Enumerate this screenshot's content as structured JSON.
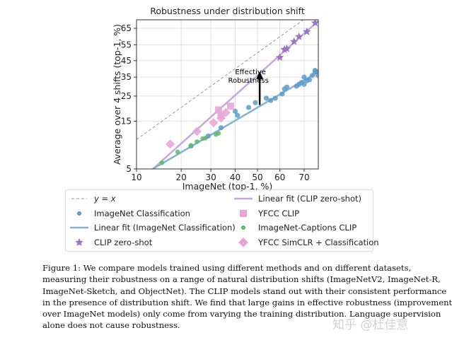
{
  "chart_data": {
    "type": "scatter",
    "title": "Robustness under distribution shift",
    "xlabel": "ImageNet (top-1, %)",
    "ylabel": "Average over 4 shifts (top-1, %)",
    "xscale": "logit",
    "yscale": "logit",
    "xlim": [
      10,
      75
    ],
    "ylim": [
      5,
      70
    ],
    "xticks": [
      10,
      20,
      30,
      40,
      50,
      60,
      70
    ],
    "yticks": [
      5,
      15,
      25,
      35,
      45,
      55,
      65
    ],
    "grid": true,
    "legend_placement": "below",
    "annotation": {
      "text_line1": "Effective",
      "text_line2": "Robustness",
      "arrow_x": 51,
      "arrow_from": 21,
      "arrow_to": 38
    },
    "series": [
      {
        "name": "y = x",
        "kind": "line",
        "color": "#999999",
        "dashed": true,
        "points": [
          [
            10,
            10
          ],
          [
            75,
            75
          ]
        ]
      },
      {
        "name": "Linear fit (CLIP zero-shot)",
        "kind": "line",
        "color": "#c5a8dd",
        "points": [
          [
            13,
            5
          ],
          [
            75,
            69
          ]
        ]
      },
      {
        "name": "ImageNet Classification",
        "kind": "circle",
        "color": "#5b9bc8",
        "points": [
          [
            23,
            8.6
          ],
          [
            29,
            10.8
          ],
          [
            34,
            13
          ],
          [
            40,
            18.5
          ],
          [
            41,
            17
          ],
          [
            46,
            20
          ],
          [
            49,
            22
          ],
          [
            54,
            24
          ],
          [
            56,
            23
          ],
          [
            58,
            24
          ],
          [
            61,
            26
          ],
          [
            62,
            28.5
          ],
          [
            63,
            29.5
          ],
          [
            67,
            30
          ],
          [
            68,
            31
          ],
          [
            69,
            32
          ],
          [
            70,
            35
          ],
          [
            70,
            31
          ],
          [
            71,
            33
          ],
          [
            72,
            33.5
          ],
          [
            73,
            36
          ],
          [
            74,
            38
          ],
          [
            74,
            39
          ],
          [
            75,
            38
          ],
          [
            75,
            36
          ]
        ]
      },
      {
        "name": "YFCC CLIP",
        "kind": "square",
        "color": "#e8a6d6",
        "points": [
          [
            33,
            19
          ],
          [
            38,
            20.5
          ],
          [
            34,
            17
          ]
        ]
      },
      {
        "name": "Linear fit (ImageNet Classification)",
        "kind": "line",
        "color": "#7fb4d6",
        "points": [
          [
            13,
            5
          ],
          [
            75,
            38
          ]
        ]
      },
      {
        "name": "ImageNet-Captions CLIP",
        "kind": "circle-small",
        "color": "#5fb86a",
        "points": [
          [
            15,
            5.8
          ],
          [
            19,
            7.5
          ],
          [
            23,
            8.7
          ],
          [
            25,
            9.5
          ],
          [
            27,
            10.2
          ],
          [
            28,
            10.3
          ],
          [
            32,
            11.2
          ],
          [
            33,
            11.5
          ]
        ]
      },
      {
        "name": "CLIP zero-shot",
        "kind": "star",
        "color": "#9b74c4",
        "points": [
          [
            60,
            47
          ],
          [
            62,
            52
          ],
          [
            63,
            52.5
          ],
          [
            66,
            57
          ],
          [
            68,
            60
          ],
          [
            71,
            63
          ],
          [
            74,
            68
          ]
        ]
      },
      {
        "name": "YFCC SimCLR + Classification",
        "kind": "diamond",
        "color": "#e8a6d6",
        "points": [
          [
            17,
            9
          ],
          [
            25,
            12
          ],
          [
            31,
            14.5
          ],
          [
            34,
            16
          ],
          [
            36,
            18
          ]
        ]
      }
    ]
  },
  "legend": {
    "items": [
      {
        "label": "y = x",
        "kind": "dash"
      },
      {
        "label": "Linear fit (CLIP zero-shot)",
        "kind": "line-purple"
      },
      {
        "label": "ImageNet Classification",
        "kind": "circle"
      },
      {
        "label": "YFCC CLIP",
        "kind": "square"
      },
      {
        "label": "Linear fit (ImageNet Classification)",
        "kind": "line-blue"
      },
      {
        "label": "ImageNet-Captions CLIP",
        "kind": "circle-green"
      },
      {
        "label": "CLIP zero-shot",
        "kind": "star"
      },
      {
        "label": "YFCC SimCLR + Classification",
        "kind": "diamond"
      }
    ]
  },
  "caption": {
    "lines": [
      "Figure 1:  We compare models trained using different methods and on different datasets,",
      "measuring their robustness on a range of natural distribution shifts (ImageNetV2, ImageNet-R,",
      "ImageNet-Sketch, and ObjectNet). The CLIP models stand out with their consistent performance",
      "in the presence of distribution shift. We find that large gains in effective robustness (improvement",
      "over ImageNet models) only come from varying the training distribution. Language supervision",
      "alone does not cause robustness."
    ]
  },
  "watermark": "知乎 @杜佳意"
}
